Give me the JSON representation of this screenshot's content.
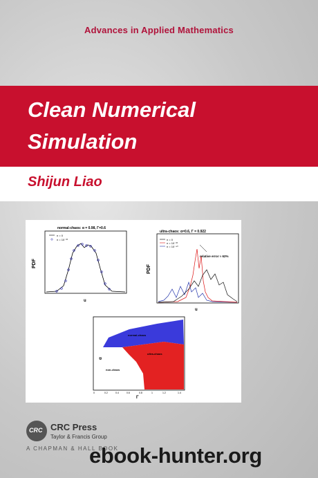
{
  "cover": {
    "series": "Advances in Applied Mathematics",
    "title_line1": "Clean Numerical",
    "title_line2": "Simulation",
    "author": "Shijun Liao",
    "colors": {
      "accent_red": "#c8102e",
      "series_red": "#b0123a",
      "background": "#cccccc"
    }
  },
  "figures": {
    "left": {
      "title": "normal-chaos:  α = 0.98,  Γ=0.6",
      "ylabel": "PDF",
      "xlabel": "u",
      "legend": [
        "n = 0",
        "n = 10⁻³⁰"
      ]
    },
    "right": {
      "title": "ultra-chaos:  α=0.6,  Γ = 0.922",
      "ylabel": "PDF",
      "xlabel": "u",
      "legend": [
        "n = 0",
        "n = 10⁻³⁰",
        "n = 10⁻⁴⁰"
      ],
      "annotation": "relative error ≈ 62%"
    },
    "bottom": {
      "ylabel": "α",
      "xlabel": "Γ",
      "region_labels": [
        "normal-chaos",
        "ultra-chaos",
        "non-chaos"
      ],
      "xticks": [
        "0",
        "0.2",
        "0.4",
        "0.6",
        "0.8",
        "1",
        "1.2",
        "1.4"
      ],
      "yticks": [
        "1",
        "0.8",
        "0.6",
        "0.4",
        "0.2",
        "0",
        "0.2",
        "1.4"
      ]
    }
  },
  "publisher": {
    "logo_text": "CRC",
    "name": "CRC Press",
    "group": "Taylor & Francis Group",
    "book_line": "A CHAPMAN & HALL BOOK"
  },
  "watermark": "ebook-hunter.org"
}
